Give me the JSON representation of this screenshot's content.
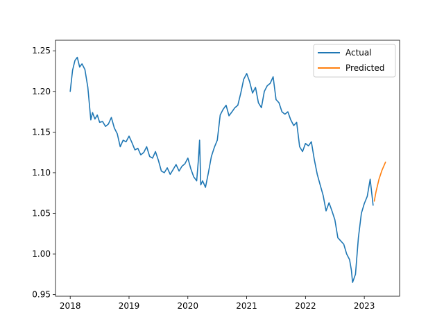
{
  "chart_data": {
    "type": "line",
    "title": "",
    "xlabel": "",
    "ylabel": "",
    "xlim": [
      2017.75,
      2023.6
    ],
    "ylim": [
      0.948,
      1.263
    ],
    "xticks": [
      2018,
      2019,
      2020,
      2021,
      2022,
      2023
    ],
    "xtick_labels": [
      "2018",
      "2019",
      "2020",
      "2021",
      "2022",
      "2023"
    ],
    "yticks": [
      0.95,
      1.0,
      1.05,
      1.1,
      1.15,
      1.2,
      1.25
    ],
    "ytick_labels": [
      "0.95",
      "1.00",
      "1.05",
      "1.10",
      "1.15",
      "1.20",
      "1.25"
    ],
    "grid": false,
    "legend_position": "top-right",
    "series": [
      {
        "name": "Actual",
        "color": "#1f77b4",
        "x": [
          2018.0,
          2018.04,
          2018.08,
          2018.12,
          2018.16,
          2018.2,
          2018.25,
          2018.3,
          2018.35,
          2018.38,
          2018.42,
          2018.46,
          2018.5,
          2018.55,
          2018.6,
          2018.65,
          2018.7,
          2018.75,
          2018.8,
          2018.85,
          2018.9,
          2018.95,
          2019.0,
          2019.05,
          2019.1,
          2019.15,
          2019.2,
          2019.25,
          2019.3,
          2019.35,
          2019.4,
          2019.45,
          2019.5,
          2019.55,
          2019.6,
          2019.65,
          2019.7,
          2019.75,
          2019.8,
          2019.85,
          2019.9,
          2019.95,
          2020.0,
          2020.05,
          2020.1,
          2020.15,
          2020.18,
          2020.2,
          2020.22,
          2020.25,
          2020.3,
          2020.35,
          2020.4,
          2020.45,
          2020.5,
          2020.55,
          2020.6,
          2020.65,
          2020.7,
          2020.75,
          2020.8,
          2020.85,
          2020.9,
          2020.95,
          2021.0,
          2021.05,
          2021.1,
          2021.15,
          2021.2,
          2021.25,
          2021.3,
          2021.35,
          2021.4,
          2021.45,
          2021.5,
          2021.55,
          2021.6,
          2021.65,
          2021.7,
          2021.75,
          2021.8,
          2021.85,
          2021.9,
          2021.95,
          2022.0,
          2022.05,
          2022.1,
          2022.15,
          2022.2,
          2022.25,
          2022.3,
          2022.35,
          2022.4,
          2022.45,
          2022.5,
          2022.55,
          2022.6,
          2022.65,
          2022.7,
          2022.75,
          2022.78,
          2022.8,
          2022.85,
          2022.9,
          2022.95,
          2023.0,
          2023.05,
          2023.1,
          2023.15
        ],
        "y": [
          1.2,
          1.226,
          1.238,
          1.242,
          1.23,
          1.234,
          1.227,
          1.205,
          1.165,
          1.174,
          1.166,
          1.171,
          1.162,
          1.163,
          1.157,
          1.16,
          1.168,
          1.155,
          1.148,
          1.132,
          1.14,
          1.138,
          1.145,
          1.137,
          1.128,
          1.13,
          1.122,
          1.125,
          1.132,
          1.12,
          1.118,
          1.126,
          1.115,
          1.102,
          1.1,
          1.106,
          1.098,
          1.104,
          1.11,
          1.102,
          1.108,
          1.111,
          1.118,
          1.105,
          1.095,
          1.09,
          1.116,
          1.14,
          1.085,
          1.09,
          1.082,
          1.1,
          1.12,
          1.131,
          1.14,
          1.171,
          1.178,
          1.183,
          1.17,
          1.175,
          1.18,
          1.183,
          1.198,
          1.215,
          1.222,
          1.212,
          1.198,
          1.205,
          1.186,
          1.18,
          1.2,
          1.207,
          1.21,
          1.218,
          1.19,
          1.186,
          1.175,
          1.172,
          1.175,
          1.165,
          1.158,
          1.162,
          1.132,
          1.126,
          1.136,
          1.133,
          1.138,
          1.116,
          1.098,
          1.085,
          1.072,
          1.053,
          1.063,
          1.053,
          1.042,
          1.02,
          1.016,
          1.012,
          1.0,
          0.993,
          0.98,
          0.965,
          0.975,
          1.02,
          1.05,
          1.062,
          1.071,
          1.092,
          1.06
        ]
      },
      {
        "name": "Predicted",
        "color": "#ff7f0e",
        "x": [
          2023.17,
          2023.2,
          2023.25,
          2023.3,
          2023.36
        ],
        "y": [
          1.065,
          1.077,
          1.092,
          1.103,
          1.113
        ]
      }
    ]
  }
}
